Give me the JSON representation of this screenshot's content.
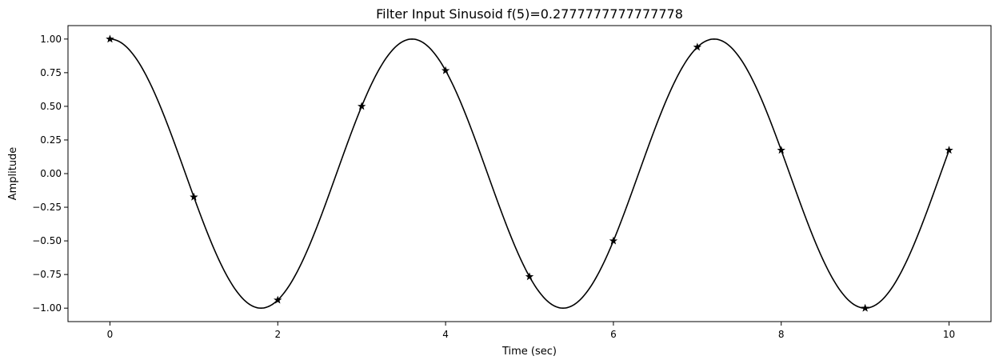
{
  "chart_data": {
    "type": "line",
    "title": "Filter Input Sinusoid f(5)=0.2777777777777778",
    "xlabel": "Time (sec)",
    "ylabel": "Amplitude",
    "xlim": [
      -0.5,
      10.5
    ],
    "ylim": [
      -1.1,
      1.1
    ],
    "x_ticks": [
      0,
      2,
      4,
      6,
      8,
      10
    ],
    "x_tick_labels": [
      "0",
      "2",
      "4",
      "6",
      "8",
      "10"
    ],
    "y_ticks": [
      1.0,
      0.75,
      0.5,
      0.25,
      0.0,
      -0.25,
      -0.5,
      -0.75,
      -1.0
    ],
    "y_tick_labels": [
      "1.00",
      "0.75",
      "0.50",
      "0.25",
      "0.00",
      "−0.25",
      "−0.50",
      "−0.75",
      "−1.00"
    ],
    "grid": false,
    "frequency": 0.2777777777777778,
    "series": [
      {
        "style": "solid-line",
        "color": "#000000",
        "x_range": [
          0,
          10
        ],
        "function": "cos(2*pi*0.2777777777777778*t)"
      },
      {
        "style": "star-markers",
        "color": "#000000",
        "x": [
          0,
          1,
          2,
          3,
          4,
          5,
          6,
          7,
          8,
          9,
          10
        ],
        "y": [
          1.0,
          -0.174,
          -0.94,
          0.5,
          0.766,
          -0.766,
          -0.5,
          0.94,
          0.174,
          -1.0,
          0.174
        ]
      }
    ]
  }
}
